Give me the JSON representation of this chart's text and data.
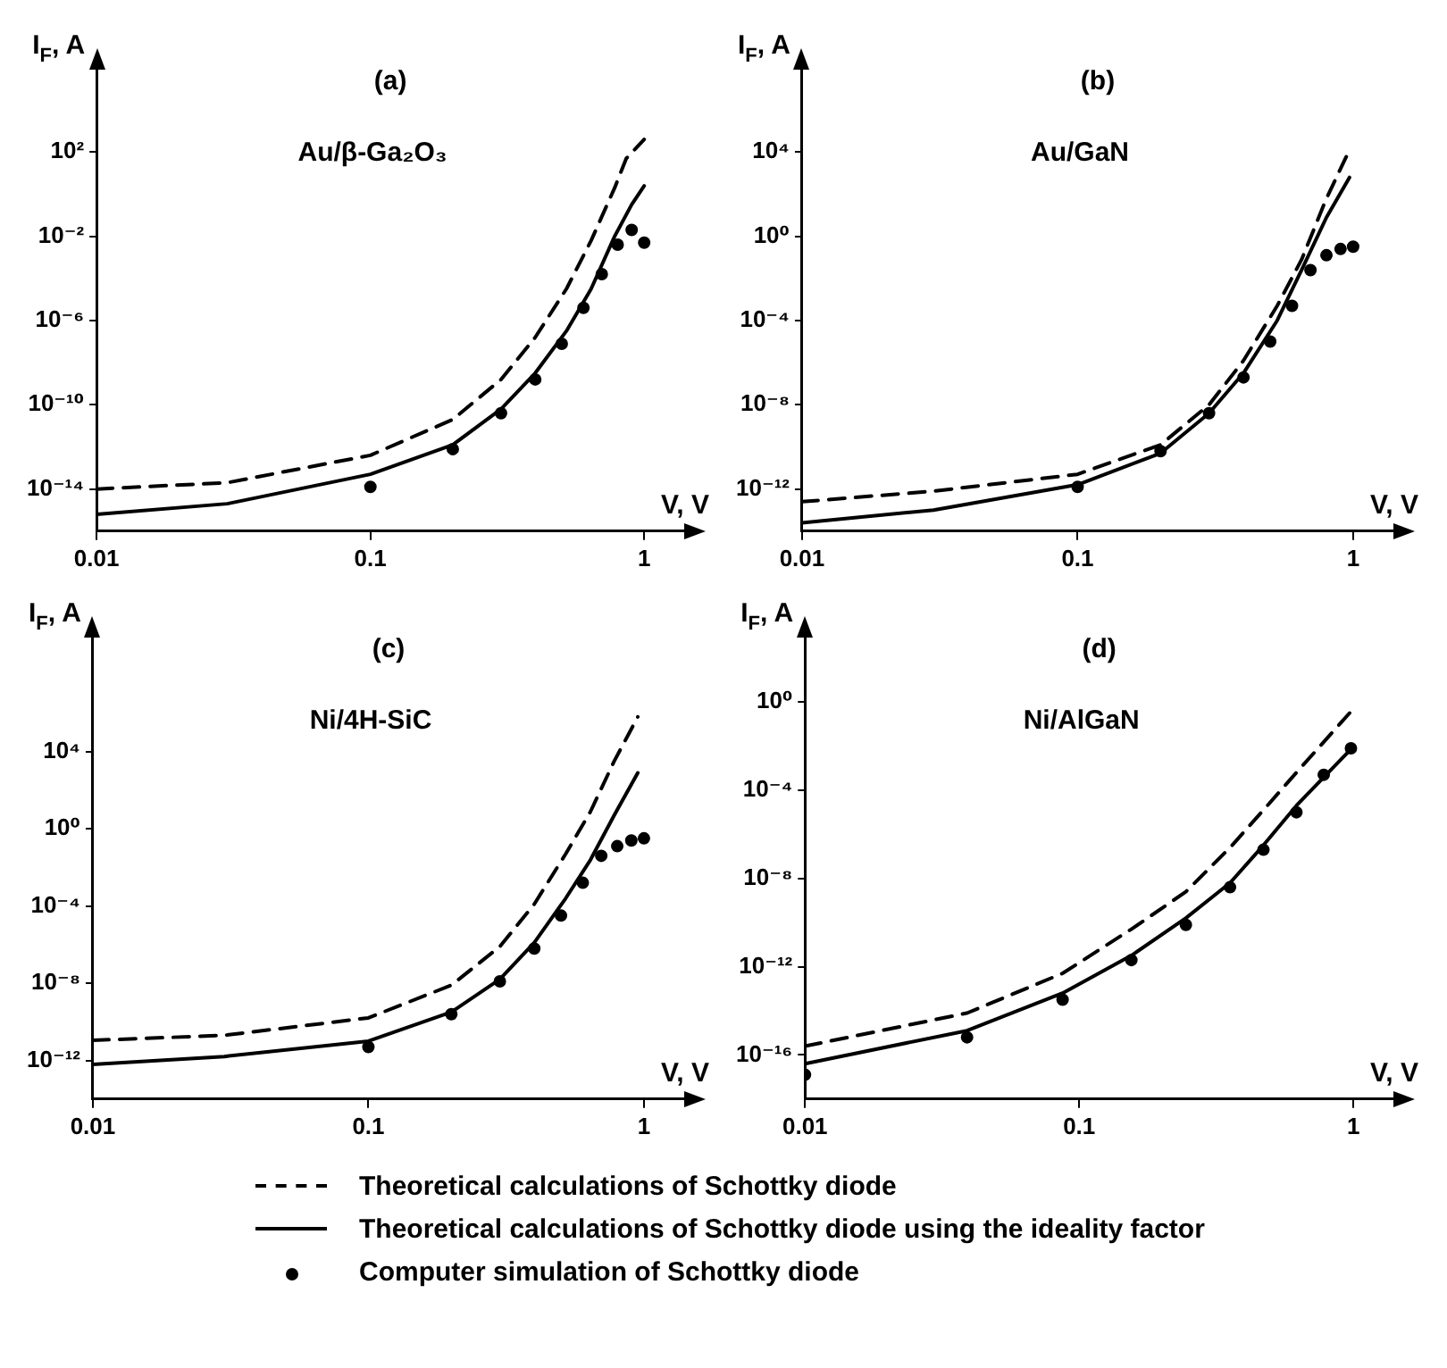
{
  "chart_data": [
    {
      "type": "line",
      "title": "(a)",
      "subtitle": "Au/β-Ga₂O₃",
      "xlabel": "V, V",
      "ylabel": "I$_{F}$, A",
      "log": "xy",
      "legend": "bottom",
      "xlim": [
        0.01,
        1.4
      ],
      "ylim": [
        1e-16,
        1000000.0
      ],
      "xticks": [
        0.01,
        0.1,
        1
      ],
      "yticks": [
        {
          "value": 100.0,
          "label": "10²"
        },
        {
          "value": 0.01,
          "label": "10⁻²"
        },
        {
          "value": 1e-06,
          "label": "10⁻⁶"
        },
        {
          "value": 1e-10,
          "label": "10⁻¹⁰"
        },
        {
          "value": 1e-14,
          "label": "10⁻¹⁴"
        }
      ],
      "series": [
        {
          "name": "Theoretical calculations of Schottky diode",
          "type": "line",
          "line_style": "dashed",
          "color": "#000000",
          "x": [
            0.01,
            0.03,
            0.1,
            0.2,
            0.3,
            0.4,
            0.52,
            0.64,
            0.78,
            0.86,
            1.0
          ],
          "values": [
            1e-14,
            2e-14,
            4e-13,
            2e-11,
            1.6e-09,
            1.6e-07,
            3.2e-05,
            0.0063,
            2,
            50,
            400
          ]
        },
        {
          "name": "Theoretical calculations of Schottky diode using the ideality factor",
          "type": "line",
          "line_style": "solid",
          "color": "#000000",
          "x": [
            0.01,
            0.03,
            0.1,
            0.2,
            0.3,
            0.4,
            0.52,
            0.64,
            0.78,
            0.9,
            1.0
          ],
          "values": [
            6.3e-16,
            2e-15,
            5e-14,
            1.26e-12,
            6.3e-11,
            3.2e-09,
            3.2e-07,
            3.2e-05,
            0.01,
            0.32,
            2.5
          ]
        },
        {
          "name": "Computer simulation of Schottky diode",
          "type": "scatter",
          "marker": "circle",
          "color": "#000000",
          "x": [
            0.1,
            0.2,
            0.3,
            0.4,
            0.5,
            0.6,
            0.7,
            0.8,
            0.9,
            1.0
          ],
          "values": [
            1.26e-14,
            7.9e-13,
            4e-11,
            1.6e-09,
            7.9e-08,
            4e-06,
            0.00016,
            0.004,
            0.02,
            0.005
          ]
        }
      ]
    },
    {
      "type": "line",
      "title": "(b)",
      "subtitle": "Au/GaN",
      "xlabel": "V, V",
      "ylabel": "I$_{F}$, A",
      "log": "xy",
      "xlim": [
        0.01,
        1.4
      ],
      "ylim": [
        1e-14,
        100000000.0
      ],
      "xticks": [
        0.01,
        0.1,
        1
      ],
      "yticks": [
        {
          "value": 10000.0,
          "label": "10⁴"
        },
        {
          "value": 1,
          "label": "10⁰"
        },
        {
          "value": 0.0001,
          "label": "10⁻⁴"
        },
        {
          "value": 1e-08,
          "label": "10⁻⁸"
        },
        {
          "value": 1e-12,
          "label": "10⁻¹²"
        }
      ],
      "series": [
        {
          "type": "line",
          "line_style": "dashed",
          "color": "#000000",
          "x": [
            0.01,
            0.03,
            0.1,
            0.2,
            0.3,
            0.4,
            0.53,
            0.65,
            0.8,
            0.97
          ],
          "values": [
            2.5e-13,
            7.9e-13,
            5e-12,
            1.26e-10,
            1e-08,
            1.26e-06,
            0.0005,
            0.079,
            63,
            12600
          ]
        },
        {
          "type": "line",
          "line_style": "solid",
          "color": "#000000",
          "x": [
            0.01,
            0.03,
            0.1,
            0.2,
            0.3,
            0.4,
            0.53,
            0.65,
            0.8,
            0.97
          ],
          "values": [
            2.5e-14,
            1e-13,
            1.6e-12,
            5e-11,
            4e-09,
            3.2e-07,
            0.0001,
            0.025,
            7.9,
            630
          ]
        },
        {
          "type": "scatter",
          "marker": "circle",
          "color": "#000000",
          "x": [
            0.1,
            0.2,
            0.3,
            0.4,
            0.5,
            0.6,
            0.7,
            0.8,
            0.9,
            1.0
          ],
          "values": [
            1.26e-12,
            6.3e-11,
            4e-09,
            2e-07,
            1e-05,
            0.0005,
            0.025,
            0.126,
            0.25,
            0.32
          ]
        }
      ]
    },
    {
      "type": "line",
      "title": "(c)",
      "subtitle": "Ni/4H-SiC",
      "xlabel": "V, V",
      "ylabel": "I$_{F}$, A",
      "log": "xy",
      "xlim": [
        0.01,
        1.4
      ],
      "ylim": [
        1e-14,
        10000000000.0
      ],
      "xticks": [
        0.01,
        0.1,
        1
      ],
      "yticks": [
        {
          "value": 10000.0,
          "label": "10⁴"
        },
        {
          "value": 1,
          "label": "10⁰"
        },
        {
          "value": 0.0001,
          "label": "10⁻⁴"
        },
        {
          "value": 1e-08,
          "label": "10⁻⁸"
        },
        {
          "value": 1e-12,
          "label": "10⁻¹²"
        }
      ],
      "series": [
        {
          "type": "line",
          "line_style": "dashed",
          "color": "#000000",
          "x": [
            0.01,
            0.03,
            0.1,
            0.2,
            0.3,
            0.4,
            0.52,
            0.64,
            0.78,
            0.95
          ],
          "values": [
            1.1e-11,
            2e-11,
            1.6e-10,
            7.9e-09,
            7.9e-07,
            0.000126,
            0.05,
            7.9,
            3200,
            630000
          ]
        },
        {
          "type": "line",
          "line_style": "solid",
          "color": "#000000",
          "x": [
            0.01,
            0.03,
            0.1,
            0.2,
            0.3,
            0.4,
            0.52,
            0.64,
            0.78,
            0.95
          ],
          "values": [
            6.3e-13,
            1.6e-12,
            1e-11,
            3.2e-10,
            1.6e-08,
            1.26e-06,
            0.00025,
            0.025,
            5,
            790
          ]
        },
        {
          "type": "scatter",
          "marker": "circle",
          "color": "#000000",
          "x": [
            0.1,
            0.2,
            0.3,
            0.4,
            0.5,
            0.6,
            0.7,
            0.8,
            0.9,
            1.0
          ],
          "values": [
            5e-12,
            2.5e-10,
            1.26e-08,
            6.3e-07,
            3.2e-05,
            0.0016,
            0.04,
            0.126,
            0.25,
            0.32
          ]
        }
      ]
    },
    {
      "type": "line",
      "title": "(d)",
      "subtitle": "Ni/AlGaN",
      "xlabel": "V, V",
      "ylabel": "I$_{F}$, A",
      "log": "xy",
      "xlim": [
        0.01,
        1.4
      ],
      "ylim": [
        1e-18,
        1000.0
      ],
      "xticks": [
        0.01,
        0.1,
        1
      ],
      "yticks": [
        {
          "value": 1,
          "label": "10⁰"
        },
        {
          "value": 0.0001,
          "label": "10⁻⁴"
        },
        {
          "value": 1e-08,
          "label": "10⁻⁸"
        },
        {
          "value": 1e-12,
          "label": "10⁻¹²"
        },
        {
          "value": 1e-16,
          "label": "10⁻¹⁶"
        }
      ],
      "series": [
        {
          "type": "line",
          "line_style": "dashed",
          "color": "#000000",
          "x": [
            0.01,
            0.039,
            0.087,
            0.155,
            0.245,
            0.355,
            0.47,
            0.62,
            0.97
          ],
          "values": [
            2.5e-16,
            7.9e-15,
            5e-13,
            5e-11,
            2.5e-09,
            2.5e-07,
            1.26e-05,
            0.00063,
            0.32
          ]
        },
        {
          "type": "line",
          "line_style": "solid",
          "color": "#000000",
          "x": [
            0.01,
            0.039,
            0.087,
            0.155,
            0.245,
            0.355,
            0.47,
            0.62,
            0.97
          ],
          "values": [
            4e-17,
            1.26e-15,
            6.3e-14,
            3.2e-12,
            1.6e-10,
            6.3e-09,
            3.2e-07,
            2e-05,
            0.0063
          ]
        },
        {
          "type": "scatter",
          "marker": "circle",
          "color": "#000000",
          "x": [
            0.01,
            0.039,
            0.087,
            0.155,
            0.245,
            0.355,
            0.47,
            0.62,
            0.78,
            0.98
          ],
          "values": [
            1.26e-17,
            6.3e-16,
            3.2e-14,
            2e-12,
            7.9e-11,
            4e-09,
            2e-07,
            1e-05,
            0.0005,
            0.0079
          ]
        }
      ]
    }
  ]
}
